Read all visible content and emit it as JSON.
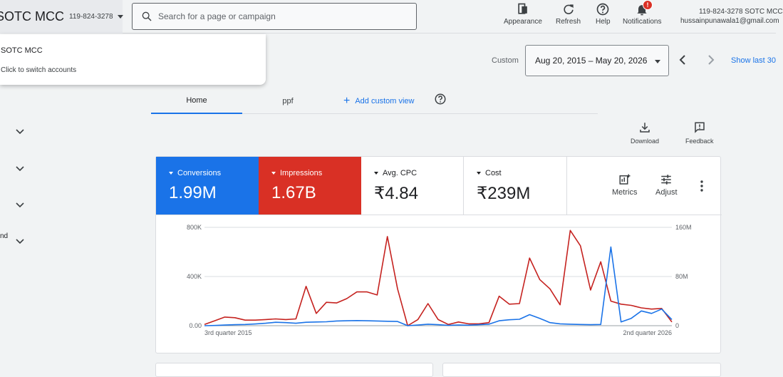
{
  "topbar": {
    "account_name": "SOTC MCC",
    "account_id": "119-824-3278",
    "search_placeholder": "Search for a page or campaign",
    "tools": [
      {
        "label": "Appearance",
        "icon": "appearance-icon"
      },
      {
        "label": "Refresh",
        "icon": "refresh-icon"
      },
      {
        "label": "Help",
        "icon": "help-icon"
      },
      {
        "label": "Notifications",
        "icon": "bell-icon",
        "badge": "!"
      }
    ],
    "user_line1": "119-824-3278 SOTC MCC",
    "user_line2": "hussainpunawala1@gmail.com"
  },
  "account_dropdown": {
    "name": "SOTC MCC",
    "subtitle": "Click to switch accounts"
  },
  "date_range": {
    "label": "Custom",
    "value": "Aug 20, 2015 – May 20, 2026",
    "show_last": "Show last 30"
  },
  "left_nav": {
    "partial_label": "nd"
  },
  "tabs": {
    "items": [
      {
        "label": "Home",
        "active": true
      },
      {
        "label": "ppf",
        "active": false
      }
    ],
    "add_custom_view": "Add custom view"
  },
  "overview_tools": {
    "download": "Download",
    "feedback": "Feedback"
  },
  "metrics": [
    {
      "label": "Conversions",
      "value": "1.99M",
      "color": "#1a73e8"
    },
    {
      "label": "Impressions",
      "value": "1.67B",
      "color": "#d93025"
    },
    {
      "label": "Avg. CPC",
      "value": "₹4.84"
    },
    {
      "label": "Cost",
      "value": "₹239M"
    }
  ],
  "card_tools": {
    "metrics": "Metrics",
    "adjust": "Adjust"
  },
  "chart_data": {
    "type": "line",
    "left_axis": {
      "ticks": [
        "800K",
        "400K",
        "0.00"
      ],
      "ylim": [
        0,
        800000
      ]
    },
    "right_axis": {
      "ticks": [
        "160M",
        "80M",
        "0"
      ],
      "ylim": [
        0,
        160000000
      ]
    },
    "x_labels": [
      "3rd quarter 2015",
      "2nd quarter 2026"
    ],
    "series": [
      {
        "name": "Conversions",
        "color": "#1a73e8",
        "axis": "left",
        "values": [
          0,
          2000,
          5000,
          8000,
          10000,
          14000,
          20000,
          28000,
          25000,
          20000,
          28000,
          30000,
          32000,
          38000,
          40000,
          42000,
          40000,
          38000,
          36000,
          34000,
          0,
          5000,
          12000,
          8000,
          3000,
          6000,
          4000,
          8000,
          12000,
          40000,
          48000,
          52000,
          90000,
          60000,
          25000,
          15000,
          12000,
          10000,
          8000,
          10000,
          640000,
          30000,
          60000,
          120000,
          100000,
          135000,
          50000
        ]
      },
      {
        "name": "Impressions",
        "color": "#c5221f",
        "axis": "right",
        "values": [
          2000000,
          8000000,
          14000000,
          13000000,
          9000000,
          9000000,
          10000000,
          11000000,
          10000000,
          11000000,
          64000000,
          20000000,
          38000000,
          37000000,
          44000000,
          55000000,
          55000000,
          50000000,
          145000000,
          60000000,
          0,
          10000000,
          36000000,
          10000000,
          2000000,
          6000000,
          3000000,
          3000000,
          5000000,
          48000000,
          35000000,
          36000000,
          110000000,
          75000000,
          60000000,
          34000000,
          155000000,
          130000000,
          58000000,
          104000000,
          40000000,
          35000000,
          33000000,
          29000000,
          27000000,
          28000000,
          6000000
        ]
      }
    ]
  }
}
